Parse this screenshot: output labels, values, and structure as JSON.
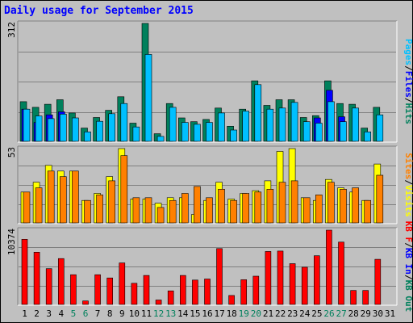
{
  "title": "Daily usage for September 2015",
  "colors": {
    "background": "#c0c0c0",
    "grid": "#808080",
    "hits": "#00805c",
    "files": "#0000ff",
    "pages": "#00c0ff",
    "visits": "#ffff00",
    "sites": "#ff8000",
    "kbytes": "#ff0000",
    "title": "#0000ff",
    "weekend_day": "#00805c",
    "weekday": "#000000"
  },
  "chart_data": [
    {
      "type": "bar",
      "panel": "top",
      "ymax_label": "312",
      "ylim": [
        0,
        312
      ],
      "categories": [
        "1",
        "2",
        "3",
        "4",
        "5",
        "6",
        "7",
        "8",
        "9",
        "10",
        "11",
        "12",
        "13",
        "14",
        "15",
        "16",
        "17",
        "18",
        "19",
        "20",
        "21",
        "22",
        "23",
        "24",
        "25",
        "26",
        "27",
        "28",
        "29",
        "30",
        "31"
      ],
      "legend": [
        "Pages",
        "/",
        "Files",
        "/",
        "Hits"
      ],
      "series": [
        {
          "name": "Hits",
          "values": [
            105,
            90,
            98,
            110,
            75,
            35,
            63,
            82,
            118,
            48,
            312,
            20,
            100,
            62,
            52,
            58,
            88,
            40,
            85,
            160,
            95,
            110,
            110,
            63,
            68,
            160,
            100,
            98,
            35,
            90,
            0
          ]
        },
        {
          "name": "Files",
          "values": [
            85,
            50,
            70,
            78,
            0,
            0,
            0,
            0,
            0,
            0,
            0,
            0,
            0,
            0,
            0,
            0,
            0,
            0,
            0,
            0,
            0,
            0,
            0,
            0,
            62,
            135,
            65,
            0,
            0,
            0,
            0
          ]
        },
        {
          "name": "Pages",
          "values": [
            85,
            67,
            60,
            72,
            62,
            25,
            53,
            73,
            100,
            38,
            230,
            13,
            90,
            50,
            45,
            50,
            75,
            30,
            80,
            150,
            85,
            88,
            103,
            52,
            48,
            105,
            52,
            88,
            25,
            70,
            0
          ]
        }
      ]
    },
    {
      "type": "bar",
      "panel": "middle",
      "ymax_label": "53",
      "ylim": [
        0,
        53
      ],
      "categories": [
        "1",
        "2",
        "3",
        "4",
        "5",
        "6",
        "7",
        "8",
        "9",
        "10",
        "11",
        "12",
        "13",
        "14",
        "15",
        "16",
        "17",
        "18",
        "19",
        "20",
        "21",
        "22",
        "23",
        "24",
        "25",
        "26",
        "27",
        "28",
        "29",
        "30",
        "31"
      ],
      "legend": [
        "Sites",
        "/",
        "Visits"
      ],
      "series": [
        {
          "name": "Visits",
          "values": [
            22,
            29,
            41,
            37,
            37,
            16,
            21,
            33,
            53,
            17,
            17,
            14,
            18,
            18,
            6,
            16,
            29,
            17,
            21,
            23,
            30,
            51,
            53,
            18,
            16,
            31,
            25,
            22,
            16,
            42,
            0
          ]
        },
        {
          "name": "Sites",
          "values": [
            22,
            25,
            37,
            33,
            37,
            16,
            20,
            30,
            48,
            18,
            18,
            11,
            16,
            21,
            26,
            18,
            24,
            16,
            21,
            22,
            24,
            29,
            30,
            18,
            20,
            29,
            24,
            25,
            16,
            34,
            0
          ]
        }
      ]
    },
    {
      "type": "bar",
      "panel": "bottom",
      "ymax_label": "10374",
      "ylim": [
        0,
        10374
      ],
      "categories": [
        "1",
        "2",
        "3",
        "4",
        "5",
        "6",
        "7",
        "8",
        "9",
        "10",
        "11",
        "12",
        "13",
        "14",
        "15",
        "16",
        "17",
        "18",
        "19",
        "20",
        "21",
        "22",
        "23",
        "24",
        "25",
        "26",
        "27",
        "28",
        "29",
        "30",
        "31"
      ],
      "legend": [
        "KB F",
        "/",
        "KB In",
        "/",
        "KB Out"
      ],
      "series": [
        {
          "name": "KB F",
          "values": [
            9100,
            7300,
            5000,
            6400,
            4150,
            480,
            4150,
            3700,
            5800,
            2950,
            4050,
            620,
            1900,
            4050,
            3400,
            3550,
            7800,
            1250,
            3450,
            3950,
            7400,
            7450,
            5700,
            5200,
            6800,
            10374,
            8700,
            1950,
            1950,
            6300,
            0
          ]
        }
      ]
    }
  ],
  "x_axis": {
    "labels": [
      "1",
      "2",
      "3",
      "4",
      "5",
      "6",
      "7",
      "8",
      "9",
      "10",
      "11",
      "12",
      "13",
      "14",
      "15",
      "16",
      "17",
      "18",
      "19",
      "20",
      "21",
      "22",
      "23",
      "24",
      "25",
      "26",
      "27",
      "28",
      "29",
      "30",
      "31"
    ],
    "weekend_days": [
      "5",
      "6",
      "12",
      "13",
      "19",
      "20",
      "26",
      "27"
    ]
  }
}
